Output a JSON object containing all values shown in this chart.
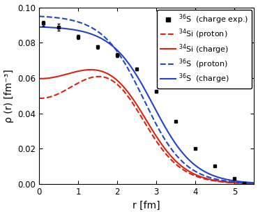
{
  "xlabel": "r [fm]",
  "ylabel": "ρ (r) [fm⁻³]",
  "xlim": [
    0,
    5.5
  ],
  "ylim": [
    0,
    0.1
  ],
  "yticks": [
    0,
    0.02,
    0.04,
    0.06,
    0.08,
    0.1
  ],
  "xticks": [
    0,
    1,
    2,
    3,
    4,
    5
  ],
  "exp_x": [
    0.1,
    0.5,
    1.0,
    1.5,
    2.0,
    2.5,
    3.0,
    3.5,
    4.0,
    4.5,
    5.0,
    5.25
  ],
  "exp_y": [
    0.091,
    0.0887,
    0.0832,
    0.0777,
    0.073,
    0.065,
    0.0525,
    0.0355,
    0.0202,
    0.0103,
    0.003,
    0.0006
  ],
  "exp_yerr": [
    0.0015,
    0.002,
    0.0013,
    0.001,
    0.001,
    0.0008,
    0.0007,
    0.0005,
    0.0004,
    0.0003,
    0.0002,
    0.0001
  ],
  "color_red": "#dd2211",
  "color_blue": "#2244cc",
  "background": "#ffffff",
  "legend_fontsize": 8.0,
  "axis_fontsize": 10,
  "tick_fontsize": 8.5
}
